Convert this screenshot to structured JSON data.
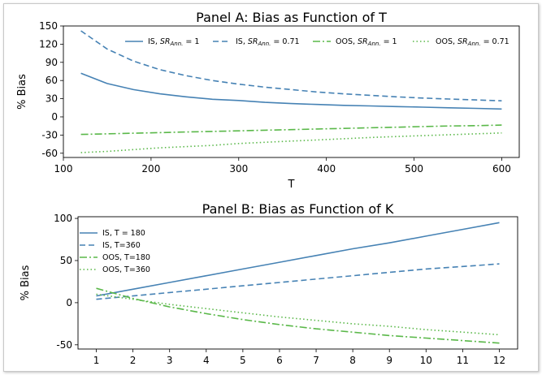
{
  "chart_data": [
    {
      "type": "line",
      "title": "Panel A: Bias as Function of T",
      "xlabel": "T",
      "ylabel": "% Bias",
      "xlim": [
        100,
        620
      ],
      "ylim": [
        -67,
        150
      ],
      "xticks": [
        100,
        200,
        300,
        400,
        500,
        600
      ],
      "yticks": [
        -60,
        -30,
        0,
        30,
        60,
        90,
        120,
        150
      ],
      "legend_position": "top",
      "x": [
        120,
        150,
        180,
        210,
        240,
        270,
        300,
        330,
        360,
        390,
        420,
        450,
        480,
        510,
        540,
        570,
        600
      ],
      "series": [
        {
          "label_prefix": "IS, ",
          "label_sr": "SR",
          "label_sub": "Ann.",
          "label_value": " = 1",
          "color": "#4682b4",
          "dash": "solid",
          "values": [
            72,
            55,
            45,
            38,
            33,
            29,
            27,
            24,
            22,
            20.5,
            19,
            18,
            17,
            16,
            15,
            14,
            13
          ]
        },
        {
          "label_prefix": "IS, ",
          "label_sr": "SR",
          "label_sub": "Ann.",
          "label_value": " = 0.71",
          "color": "#4682b4",
          "dash": "dashed",
          "values": [
            142,
            112,
            92,
            78,
            68,
            60,
            54,
            49,
            45,
            41,
            38,
            35.5,
            33,
            31,
            29.5,
            28,
            26.5
          ]
        },
        {
          "label_prefix": "OOS, ",
          "label_sr": "SR",
          "label_sub": "Ann.",
          "label_value": " = 1",
          "color": "#5ab849",
          "dash": "dashdot",
          "values": [
            -29,
            -28,
            -27,
            -26,
            -25,
            -24,
            -23,
            -22,
            -21,
            -20,
            -19,
            -18,
            -17,
            -16,
            -15,
            -14.5,
            -13.5
          ]
        },
        {
          "label_prefix": "OOS, ",
          "label_sr": "SR",
          "label_sub": "Ann.",
          "label_value": " = 0.71",
          "color": "#5ab849",
          "dash": "dotted",
          "values": [
            -59,
            -57,
            -54,
            -51,
            -49,
            -47,
            -44,
            -42,
            -40,
            -38,
            -36,
            -34,
            -32.5,
            -31,
            -29.5,
            -28,
            -26.5
          ]
        }
      ]
    },
    {
      "type": "line",
      "title": "Panel B: Bias as Function of K",
      "xlabel": "",
      "ylabel": "% Bias",
      "xlim": [
        0.5,
        12.5
      ],
      "ylim": [
        -55,
        102
      ],
      "xticks": [
        1,
        2,
        3,
        4,
        5,
        6,
        7,
        8,
        9,
        10,
        11,
        12
      ],
      "yticks": [
        -50,
        0,
        50,
        100
      ],
      "legend_position": "top-left",
      "x": [
        1,
        2,
        3,
        4,
        5,
        6,
        7,
        8,
        9,
        10,
        11,
        12
      ],
      "series": [
        {
          "name": "IS, T = 180",
          "color": "#4682b4",
          "dash": "solid",
          "values": [
            8,
            16,
            24,
            32,
            40,
            48,
            56,
            64,
            71,
            79,
            87,
            95
          ]
        },
        {
          "name": "IS, T=360",
          "color": "#4682b4",
          "dash": "dashed",
          "values": [
            4,
            8,
            12,
            16,
            20,
            24,
            28,
            32,
            36,
            40,
            43,
            46
          ]
        },
        {
          "name": "OOS, T=180",
          "color": "#5ab849",
          "dash": "dashdot",
          "values": [
            17,
            5,
            -5,
            -13,
            -20,
            -26,
            -31,
            -35,
            -39,
            -42,
            -45,
            -48
          ]
        },
        {
          "name": "OOS, T=360",
          "color": "#5ab849",
          "dash": "dotted",
          "values": [
            10,
            4,
            -2,
            -7,
            -12,
            -17,
            -21,
            -25,
            -28,
            -32,
            -35,
            -38
          ]
        }
      ]
    }
  ]
}
